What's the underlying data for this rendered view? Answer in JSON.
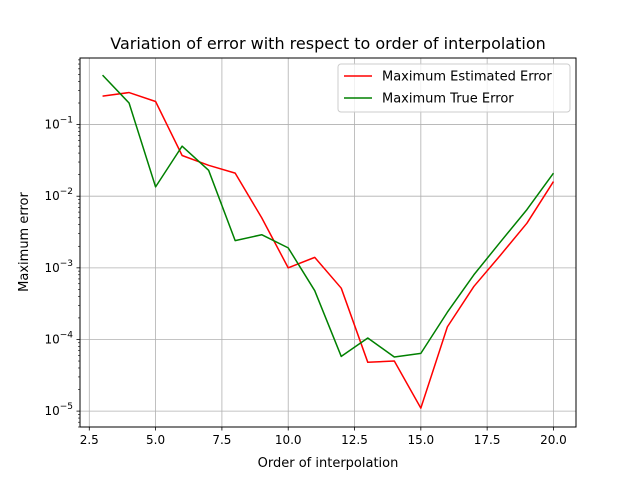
{
  "chart_data": {
    "type": "line",
    "title": "Variation of error with respect to order of interpolation",
    "xlabel": "Order of interpolation",
    "ylabel": "Maximum error",
    "xlim": [
      2.15,
      20.85
    ],
    "ylim": [
      6e-06,
      0.85
    ],
    "yscale": "log",
    "grid": true,
    "legend_position": "top-right",
    "x_ticks": [
      2.5,
      5.0,
      7.5,
      10.0,
      12.5,
      15.0,
      17.5,
      20.0
    ],
    "x_tick_labels": [
      "2.5",
      "5.0",
      "7.5",
      "10.0",
      "12.5",
      "15.0",
      "17.5",
      "20.0"
    ],
    "y_tick_exponents": [
      -5,
      -4,
      -3,
      -2,
      -1
    ],
    "y_tick_base": "10",
    "x": [
      3,
      4,
      5,
      6,
      7,
      8,
      9,
      10,
      11,
      12,
      13,
      14,
      15,
      16,
      17,
      18,
      19,
      20
    ],
    "series": [
      {
        "name": "Maximum Estimated Error",
        "color": "#ff0000",
        "values": [
          0.25,
          0.28,
          0.21,
          0.037,
          0.027,
          0.021,
          0.005,
          0.001,
          0.0014,
          0.00052,
          4.8e-05,
          5e-05,
          1.1e-05,
          0.00015,
          0.00055,
          0.0015,
          0.0042,
          0.016
        ]
      },
      {
        "name": "Maximum True Error",
        "color": "#008000",
        "values": [
          0.49,
          0.2,
          0.0135,
          0.05,
          0.023,
          0.0024,
          0.0029,
          0.0019,
          0.00048,
          5.8e-05,
          0.000105,
          5.7e-05,
          6.4e-05,
          0.00024,
          0.0008,
          0.0023,
          0.0065,
          0.021
        ]
      }
    ]
  }
}
